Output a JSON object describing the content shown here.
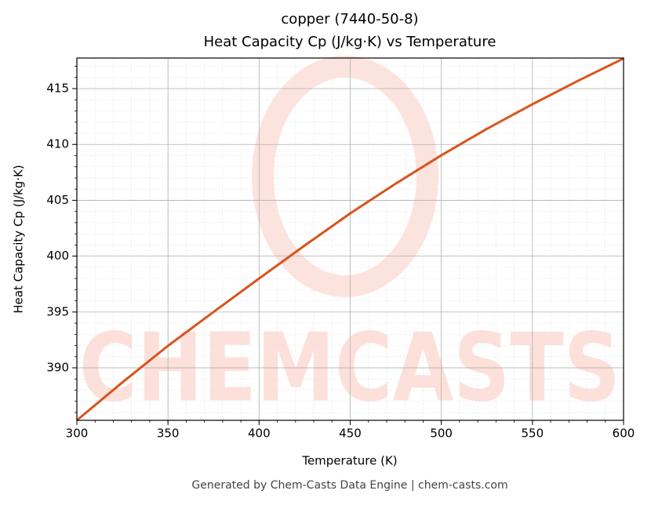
{
  "chart_data": {
    "type": "line",
    "title": "copper (7440-50-8)",
    "subtitle": "Heat Capacity Cp (J/kg·K) vs Temperature",
    "x_label": "Temperature (K)",
    "y_label": "Heat Capacity Cp (J/kg·K)",
    "footer": "Generated by Chem-Casts Data Engine | chem-casts.com",
    "watermark": "CHEMCASTS",
    "x": [
      300,
      325,
      350,
      375,
      400,
      425,
      450,
      475,
      500,
      525,
      550,
      575,
      600
    ],
    "series": [
      {
        "name": "Cp",
        "color": "#d9541e",
        "values": [
          385.3,
          388.7,
          391.97,
          395.0,
          398.0,
          400.95,
          403.83,
          406.5,
          409.03,
          411.4,
          413.6,
          415.7,
          417.7
        ]
      }
    ],
    "xlim": [
      300,
      600
    ],
    "xticks": [
      300,
      350,
      400,
      450,
      500,
      550,
      600
    ],
    "ylim": [
      385.3,
      417.74
    ],
    "yticks": [
      390,
      395,
      400,
      405,
      410,
      415
    ],
    "grid": true,
    "minor_grid": true,
    "minor_divisions": 5
  }
}
